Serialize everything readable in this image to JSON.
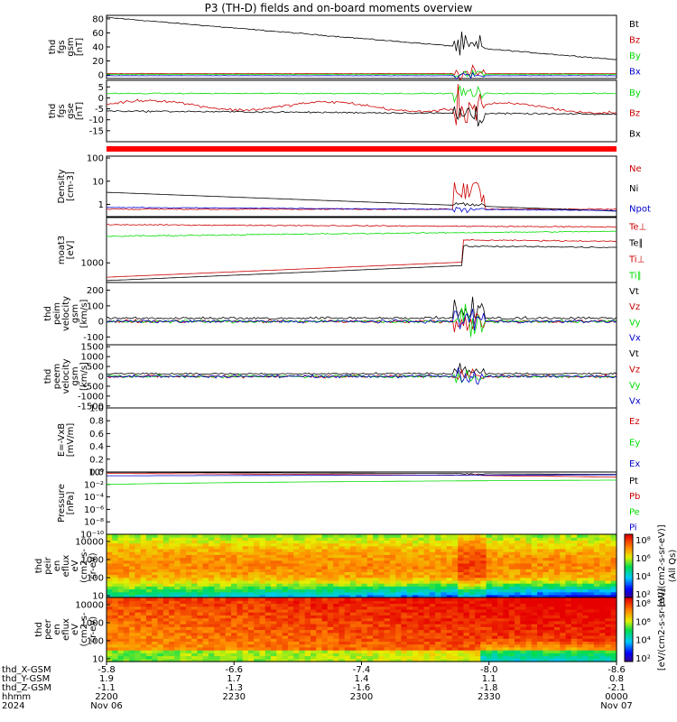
{
  "title": "P3 (TH-D) fields and on-board moments overview",
  "colors": {
    "black": "#000000",
    "red": "#cc0000",
    "green": "#00dd00",
    "blue": "#0000cc",
    "status": "#ff0000"
  },
  "time": {
    "ticks": [
      "2200",
      "2230",
      "2300",
      "2330",
      "0000"
    ],
    "year": "2024",
    "date_start": "Nov 06",
    "date_end": "Nov 07",
    "rows": [
      {
        "label": "thd_X-GSM",
        "values": [
          "-5.8",
          "-6.6",
          "-7.4",
          "-8.0",
          "-8.6"
        ]
      },
      {
        "label": "thd_Y-GSM",
        "values": [
          "1.9",
          "1.7",
          "1.4",
          "1.1",
          "0.8"
        ]
      },
      {
        "label": "thd_Z-GSM",
        "values": [
          "-1.1",
          "-1.3",
          "-1.6",
          "-1.8",
          "-2.1"
        ]
      },
      {
        "label": "hhmm",
        "values": [
          "2200",
          "2230",
          "2300",
          "2330",
          "0000"
        ]
      },
      {
        "label": "2024",
        "values": [
          "Nov 06",
          "",
          "",
          "",
          "Nov 07"
        ]
      }
    ]
  },
  "chart_data": [
    {
      "id": "fgs_gsm",
      "type": "line",
      "ylabel": [
        "thd",
        "fgs",
        "gsm",
        "[nT]"
      ],
      "ylim": [
        -5,
        85
      ],
      "yticks": [
        "80",
        "60",
        "40",
        "20",
        "0"
      ],
      "series": [
        {
          "name": "Bt",
          "color": "black"
        },
        {
          "name": "Bz",
          "color": "red"
        },
        {
          "name": "By",
          "color": "green"
        },
        {
          "name": "Bx",
          "color": "blue"
        }
      ]
    },
    {
      "id": "fgs_gse",
      "type": "line",
      "ylabel": [
        "thd",
        "fgs",
        "gse",
        "[nT]"
      ],
      "ylim": [
        -20,
        8
      ],
      "yticks": [
        "5",
        "0",
        "-5",
        "-10",
        "-15"
      ],
      "series": [
        {
          "name": "By",
          "color": "green"
        },
        {
          "name": "Bz",
          "color": "red"
        },
        {
          "name": "Bx",
          "color": "black"
        }
      ]
    },
    {
      "id": "density",
      "type": "line",
      "log": true,
      "ylabel": [
        "Density",
        "[cm-3]"
      ],
      "ylim": [
        0.3,
        120
      ],
      "yticks": [
        "100",
        "10",
        "1"
      ],
      "series": [
        {
          "name": "Ne",
          "color": "red"
        },
        {
          "name": "Ni",
          "color": "black"
        },
        {
          "name": "Npot",
          "color": "blue"
        }
      ]
    },
    {
      "id": "temperature",
      "type": "line",
      "log": true,
      "ylabel": [
        "moat3",
        "[eV]"
      ],
      "ylim": [
        150,
        80000
      ],
      "yticks": [
        "1000"
      ],
      "series": [
        {
          "name": "Te⊥",
          "color": "red"
        },
        {
          "name": "Te∥",
          "color": "black"
        },
        {
          "name": "Ti⊥",
          "color": "red"
        },
        {
          "name": "Ti∥",
          "color": "green"
        }
      ]
    },
    {
      "id": "peim_velocity",
      "type": "line",
      "ylabel": [
        "thd",
        "peim",
        "velocity",
        "gsm",
        "[km/s]"
      ],
      "ylim": [
        -150,
        250
      ],
      "yticks": [
        "200",
        "100",
        "0",
        "-100"
      ],
      "series": [
        {
          "name": "Vt",
          "color": "black"
        },
        {
          "name": "Vz",
          "color": "red"
        },
        {
          "name": "Vy",
          "color": "green"
        },
        {
          "name": "Vx",
          "color": "blue"
        }
      ]
    },
    {
      "id": "peem_velocity",
      "type": "line",
      "ylabel": [
        "thd",
        "peem",
        "velocity",
        "gsm",
        "[km/s]"
      ],
      "ylim": [
        -1600,
        1600
      ],
      "yticks": [
        "1500",
        "1000",
        "500",
        "0",
        "-500",
        "-1000",
        "-1500"
      ],
      "series": [
        {
          "name": "Vt",
          "color": "black"
        },
        {
          "name": "Vz",
          "color": "red"
        },
        {
          "name": "Vy",
          "color": "green"
        },
        {
          "name": "Vx",
          "color": "blue"
        }
      ]
    },
    {
      "id": "efield",
      "type": "line",
      "ylabel": [
        "E=-VxB",
        "[mV/m]"
      ],
      "ylim": [
        0,
        1
      ],
      "yticks": [
        "1.0",
        "0.8",
        "0.6",
        "0.4",
        "0.2",
        "0.0"
      ],
      "series": [
        {
          "name": "Ez",
          "color": "red"
        },
        {
          "name": "Ey",
          "color": "green"
        },
        {
          "name": "Ex",
          "color": "blue"
        }
      ]
    },
    {
      "id": "pressure",
      "type": "line",
      "log": true,
      "ylabel": [
        "Pressure",
        "[nPa]"
      ],
      "ylim": [
        1e-10,
        1
      ],
      "yticks": [
        "10⁰",
        "10⁻²",
        "10⁻⁴",
        "10⁻⁶",
        "10⁻⁸",
        "10⁻¹⁰"
      ],
      "series": [
        {
          "name": "Pt",
          "color": "black"
        },
        {
          "name": "Pb",
          "color": "red"
        },
        {
          "name": "Pe",
          "color": "green"
        },
        {
          "name": "Pi",
          "color": "blue"
        }
      ]
    },
    {
      "id": "peir_spectrogram",
      "type": "heatmap",
      "log": true,
      "ylabel": [
        "thd",
        "peir",
        "en",
        "eflux",
        "eV",
        "(cm2-s-",
        "sr-eV)"
      ],
      "ylim": [
        8,
        25000
      ],
      "yticks": [
        "10000",
        "1000",
        "100",
        "10"
      ],
      "colorbar": {
        "label": "[eV/(cm2-s-sr-eV)]",
        "ticks": [
          "10⁸",
          "10⁶",
          "10⁴",
          "10²"
        ]
      }
    },
    {
      "id": "peer_spectrogram",
      "type": "heatmap",
      "log": true,
      "ylabel": [
        "thd",
        "peer",
        "en",
        "eflux",
        "eV",
        "(cm2-s-",
        "sr-eV)"
      ],
      "ylim": [
        7,
        25000
      ],
      "yticks": [
        "10000",
        "1000",
        "100",
        "10"
      ],
      "colorbar": {
        "label": "[eV/(cm2-s-sr-eV)]",
        "ticks": [
          "10⁸",
          "10⁶",
          "10⁴",
          "10²"
        ]
      }
    }
  ],
  "colorbar_note": "(All Qs)"
}
